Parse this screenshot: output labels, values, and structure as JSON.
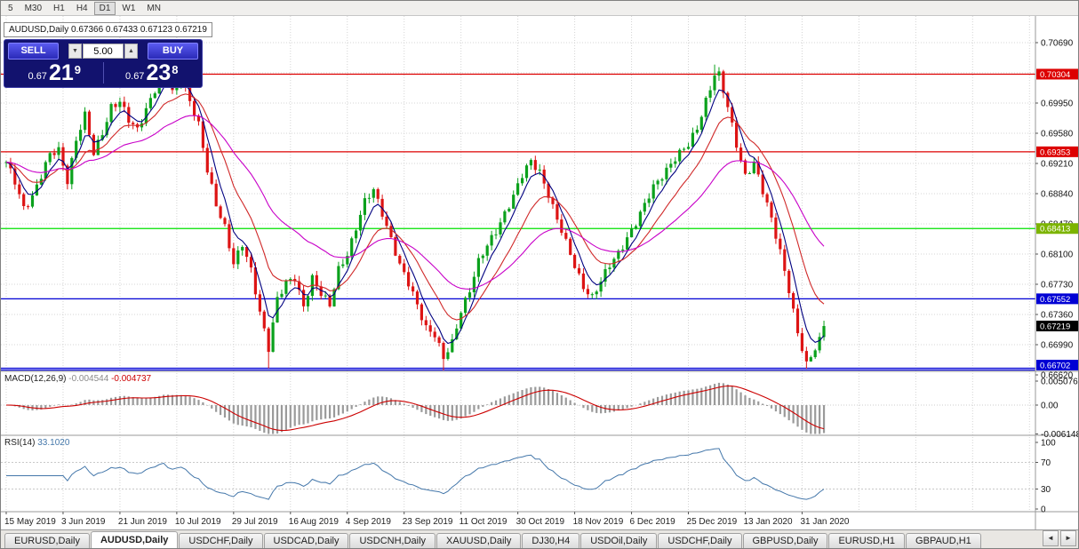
{
  "toolbar": {
    "timeframes": [
      {
        "label": "5",
        "active": false
      },
      {
        "label": "M30",
        "active": false
      },
      {
        "label": "H1",
        "active": false
      },
      {
        "label": "H4",
        "active": false
      },
      {
        "label": "D1",
        "active": true
      },
      {
        "label": "W1",
        "active": false
      },
      {
        "label": "MN",
        "active": false
      }
    ]
  },
  "chart_header": {
    "text": "AUDUSD,Daily 0.67366 0.67433 0.67123 0.67219"
  },
  "trade_panel": {
    "sell_label": "SELL",
    "buy_label": "BUY",
    "volume": "5.00",
    "spin_down": "▼",
    "spin_up": "▲",
    "sell_price_small": "0.67",
    "sell_price_big": "21",
    "sell_price_sup": "9",
    "buy_price_small": "0.67",
    "buy_price_big": "23",
    "buy_price_sup": "8"
  },
  "indicators": {
    "macd": {
      "name": "MACD(12,26,9)",
      "value_main": "-0.004544",
      "value_signal": "-0.004737",
      "axis_labels": [
        "0.005076",
        "0.00",
        "-0.006148"
      ]
    },
    "rsi": {
      "name": "RSI(14)",
      "value": "33.1020",
      "axis_labels": [
        "100",
        "70",
        "30",
        "0"
      ]
    }
  },
  "tabs": {
    "items": [
      {
        "label": "EURUSD,Daily",
        "active": false
      },
      {
        "label": "AUDUSD,Daily",
        "active": true
      },
      {
        "label": "USDCHF,Daily",
        "active": false
      },
      {
        "label": "USDCAD,Daily",
        "active": false
      },
      {
        "label": "USDCNH,Daily",
        "active": false
      },
      {
        "label": "XAUUSD,Daily",
        "active": false
      },
      {
        "label": "DJ30,H4",
        "active": false
      },
      {
        "label": "USDOil,Daily",
        "active": false
      },
      {
        "label": "USDCHF,Daily",
        "active": false
      },
      {
        "label": "GBPUSD,Daily",
        "active": false
      },
      {
        "label": "EURUSD,H1",
        "active": false
      },
      {
        "label": "GBPAUD,H1",
        "active": false
      }
    ],
    "scroll_left": "◄",
    "scroll_right": "►"
  },
  "chart_data": {
    "type": "candlestick",
    "symbol": "AUDUSD",
    "timeframe": "Daily",
    "ohlc_current": {
      "open": 0.67366,
      "high": 0.67433,
      "low": 0.67123,
      "close": 0.67219
    },
    "y_axis_labels": [
      "0.70690",
      "0.69950",
      "0.69580",
      "0.69210",
      "0.68840",
      "0.68470",
      "0.68100",
      "0.67730",
      "0.67360",
      "0.66990",
      "0.66620"
    ],
    "y_grid_top": 0.7069,
    "y_grid_step": 0.0037,
    "x_labels": [
      "15 May 2019",
      "3 Jun 2019",
      "21 Jun 2019",
      "10 Jul 2019",
      "29 Jul 2019",
      "16 Aug 2019",
      "4 Sep 2019",
      "23 Sep 2019",
      "11 Oct 2019",
      "30 Oct 2019",
      "18 Nov 2019",
      "6 Dec 2019",
      "25 Dec 2019",
      "13 Jan 2020",
      "31 Jan 2020"
    ],
    "bars_per_label": 13,
    "bars_total": 188,
    "close_anchors": [
      [
        0,
        0.692
      ],
      [
        2,
        0.6898
      ],
      [
        4,
        0.6868
      ],
      [
        6,
        0.6882
      ],
      [
        8,
        0.6905
      ],
      [
        10,
        0.693
      ],
      [
        12,
        0.6938
      ],
      [
        14,
        0.6902
      ],
      [
        16,
        0.695
      ],
      [
        18,
        0.6978
      ],
      [
        20,
        0.6932
      ],
      [
        22,
        0.696
      ],
      [
        24,
        0.6992
      ],
      [
        26,
        0.6996
      ],
      [
        28,
        0.6972
      ],
      [
        30,
        0.6962
      ],
      [
        32,
        0.699
      ],
      [
        34,
        0.7012
      ],
      [
        36,
        0.7031
      ],
      [
        38,
        0.7006
      ],
      [
        40,
        0.7029
      ],
      [
        42,
        0.7
      ],
      [
        44,
        0.6968
      ],
      [
        46,
        0.691
      ],
      [
        48,
        0.687
      ],
      [
        50,
        0.6845
      ],
      [
        52,
        0.68
      ],
      [
        54,
        0.682
      ],
      [
        56,
        0.6788
      ],
      [
        58,
        0.674
      ],
      [
        60,
        0.6697
      ],
      [
        62,
        0.6755
      ],
      [
        64,
        0.6772
      ],
      [
        66,
        0.678
      ],
      [
        68,
        0.6748
      ],
      [
        70,
        0.6782
      ],
      [
        72,
        0.676
      ],
      [
        74,
        0.6745
      ],
      [
        76,
        0.6792
      ],
      [
        78,
        0.6812
      ],
      [
        80,
        0.6842
      ],
      [
        82,
        0.6872
      ],
      [
        84,
        0.6888
      ],
      [
        86,
        0.6862
      ],
      [
        88,
        0.683
      ],
      [
        90,
        0.6795
      ],
      [
        92,
        0.6772
      ],
      [
        94,
        0.6748
      ],
      [
        96,
        0.6722
      ],
      [
        98,
        0.6712
      ],
      [
        100,
        0.668
      ],
      [
        102,
        0.67
      ],
      [
        104,
        0.6742
      ],
      [
        106,
        0.6768
      ],
      [
        108,
        0.68
      ],
      [
        110,
        0.6818
      ],
      [
        112,
        0.6838
      ],
      [
        114,
        0.6862
      ],
      [
        116,
        0.6882
      ],
      [
        118,
        0.6905
      ],
      [
        120,
        0.6922
      ],
      [
        122,
        0.6912
      ],
      [
        124,
        0.6885
      ],
      [
        126,
        0.6852
      ],
      [
        128,
        0.6822
      ],
      [
        130,
        0.6795
      ],
      [
        132,
        0.6772
      ],
      [
        134,
        0.6758
      ],
      [
        136,
        0.6775
      ],
      [
        138,
        0.6795
      ],
      [
        140,
        0.6812
      ],
      [
        142,
        0.6832
      ],
      [
        144,
        0.6848
      ],
      [
        146,
        0.6868
      ],
      [
        148,
        0.6892
      ],
      [
        150,
        0.6908
      ],
      [
        152,
        0.6922
      ],
      [
        154,
        0.6932
      ],
      [
        156,
        0.6942
      ],
      [
        158,
        0.6965
      ],
      [
        160,
        0.7
      ],
      [
        162,
        0.703
      ],
      [
        163,
        0.7028
      ],
      [
        165,
        0.6988
      ],
      [
        167,
        0.6945
      ],
      [
        169,
        0.6908
      ],
      [
        171,
        0.6922
      ],
      [
        173,
        0.6885
      ],
      [
        175,
        0.6852
      ],
      [
        177,
        0.6815
      ],
      [
        179,
        0.6768
      ],
      [
        181,
        0.6712
      ],
      [
        183,
        0.6672
      ],
      [
        185,
        0.6695
      ],
      [
        187,
        0.67219
      ]
    ],
    "wick_emphasis": {
      "36": 0.0005,
      "60": -0.0018,
      "100": -0.0012,
      "162": 0.0007,
      "183": -0.0008
    },
    "horizontal_lines": [
      {
        "price": 0.70304,
        "label": "0.70304",
        "line": "#dd0000",
        "bg": "#dd0000"
      },
      {
        "price": 0.69353,
        "label": "0.69353",
        "line": "#dd0000",
        "bg": "#dd0000"
      },
      {
        "price": 0.68413,
        "label": "0.68413",
        "line": "#00e100",
        "bg": "#7cb400"
      },
      {
        "price": 0.67552,
        "label": "0.67552",
        "line": "#0000d4",
        "bg": "#0000d4"
      },
      {
        "price": 0.66702,
        "label": "0.66702",
        "line": "#0000d4",
        "bg": "#0000d4"
      },
      {
        "price": 0.6666,
        "label": "",
        "line": "#0000d4",
        "bg": ""
      }
    ],
    "current_price_label": {
      "text": "0.67219",
      "price": 0.67219,
      "bg": "#000000"
    },
    "moving_averages": [
      {
        "period": 5,
        "color": "#000080"
      },
      {
        "period": 13,
        "color": "#d02828"
      },
      {
        "period": 34,
        "color": "#c800c8"
      }
    ],
    "macd_params": {
      "fast": 12,
      "slow": 26,
      "signal": 9,
      "hist_color": "#9a9a9a",
      "signal_color": "#cc0000"
    },
    "rsi_params": {
      "period": 14,
      "color": "#4477aa",
      "levels": [
        70,
        30
      ]
    },
    "candle_colors": {
      "up": "#0ba11c",
      "down": "#dd1414"
    }
  }
}
